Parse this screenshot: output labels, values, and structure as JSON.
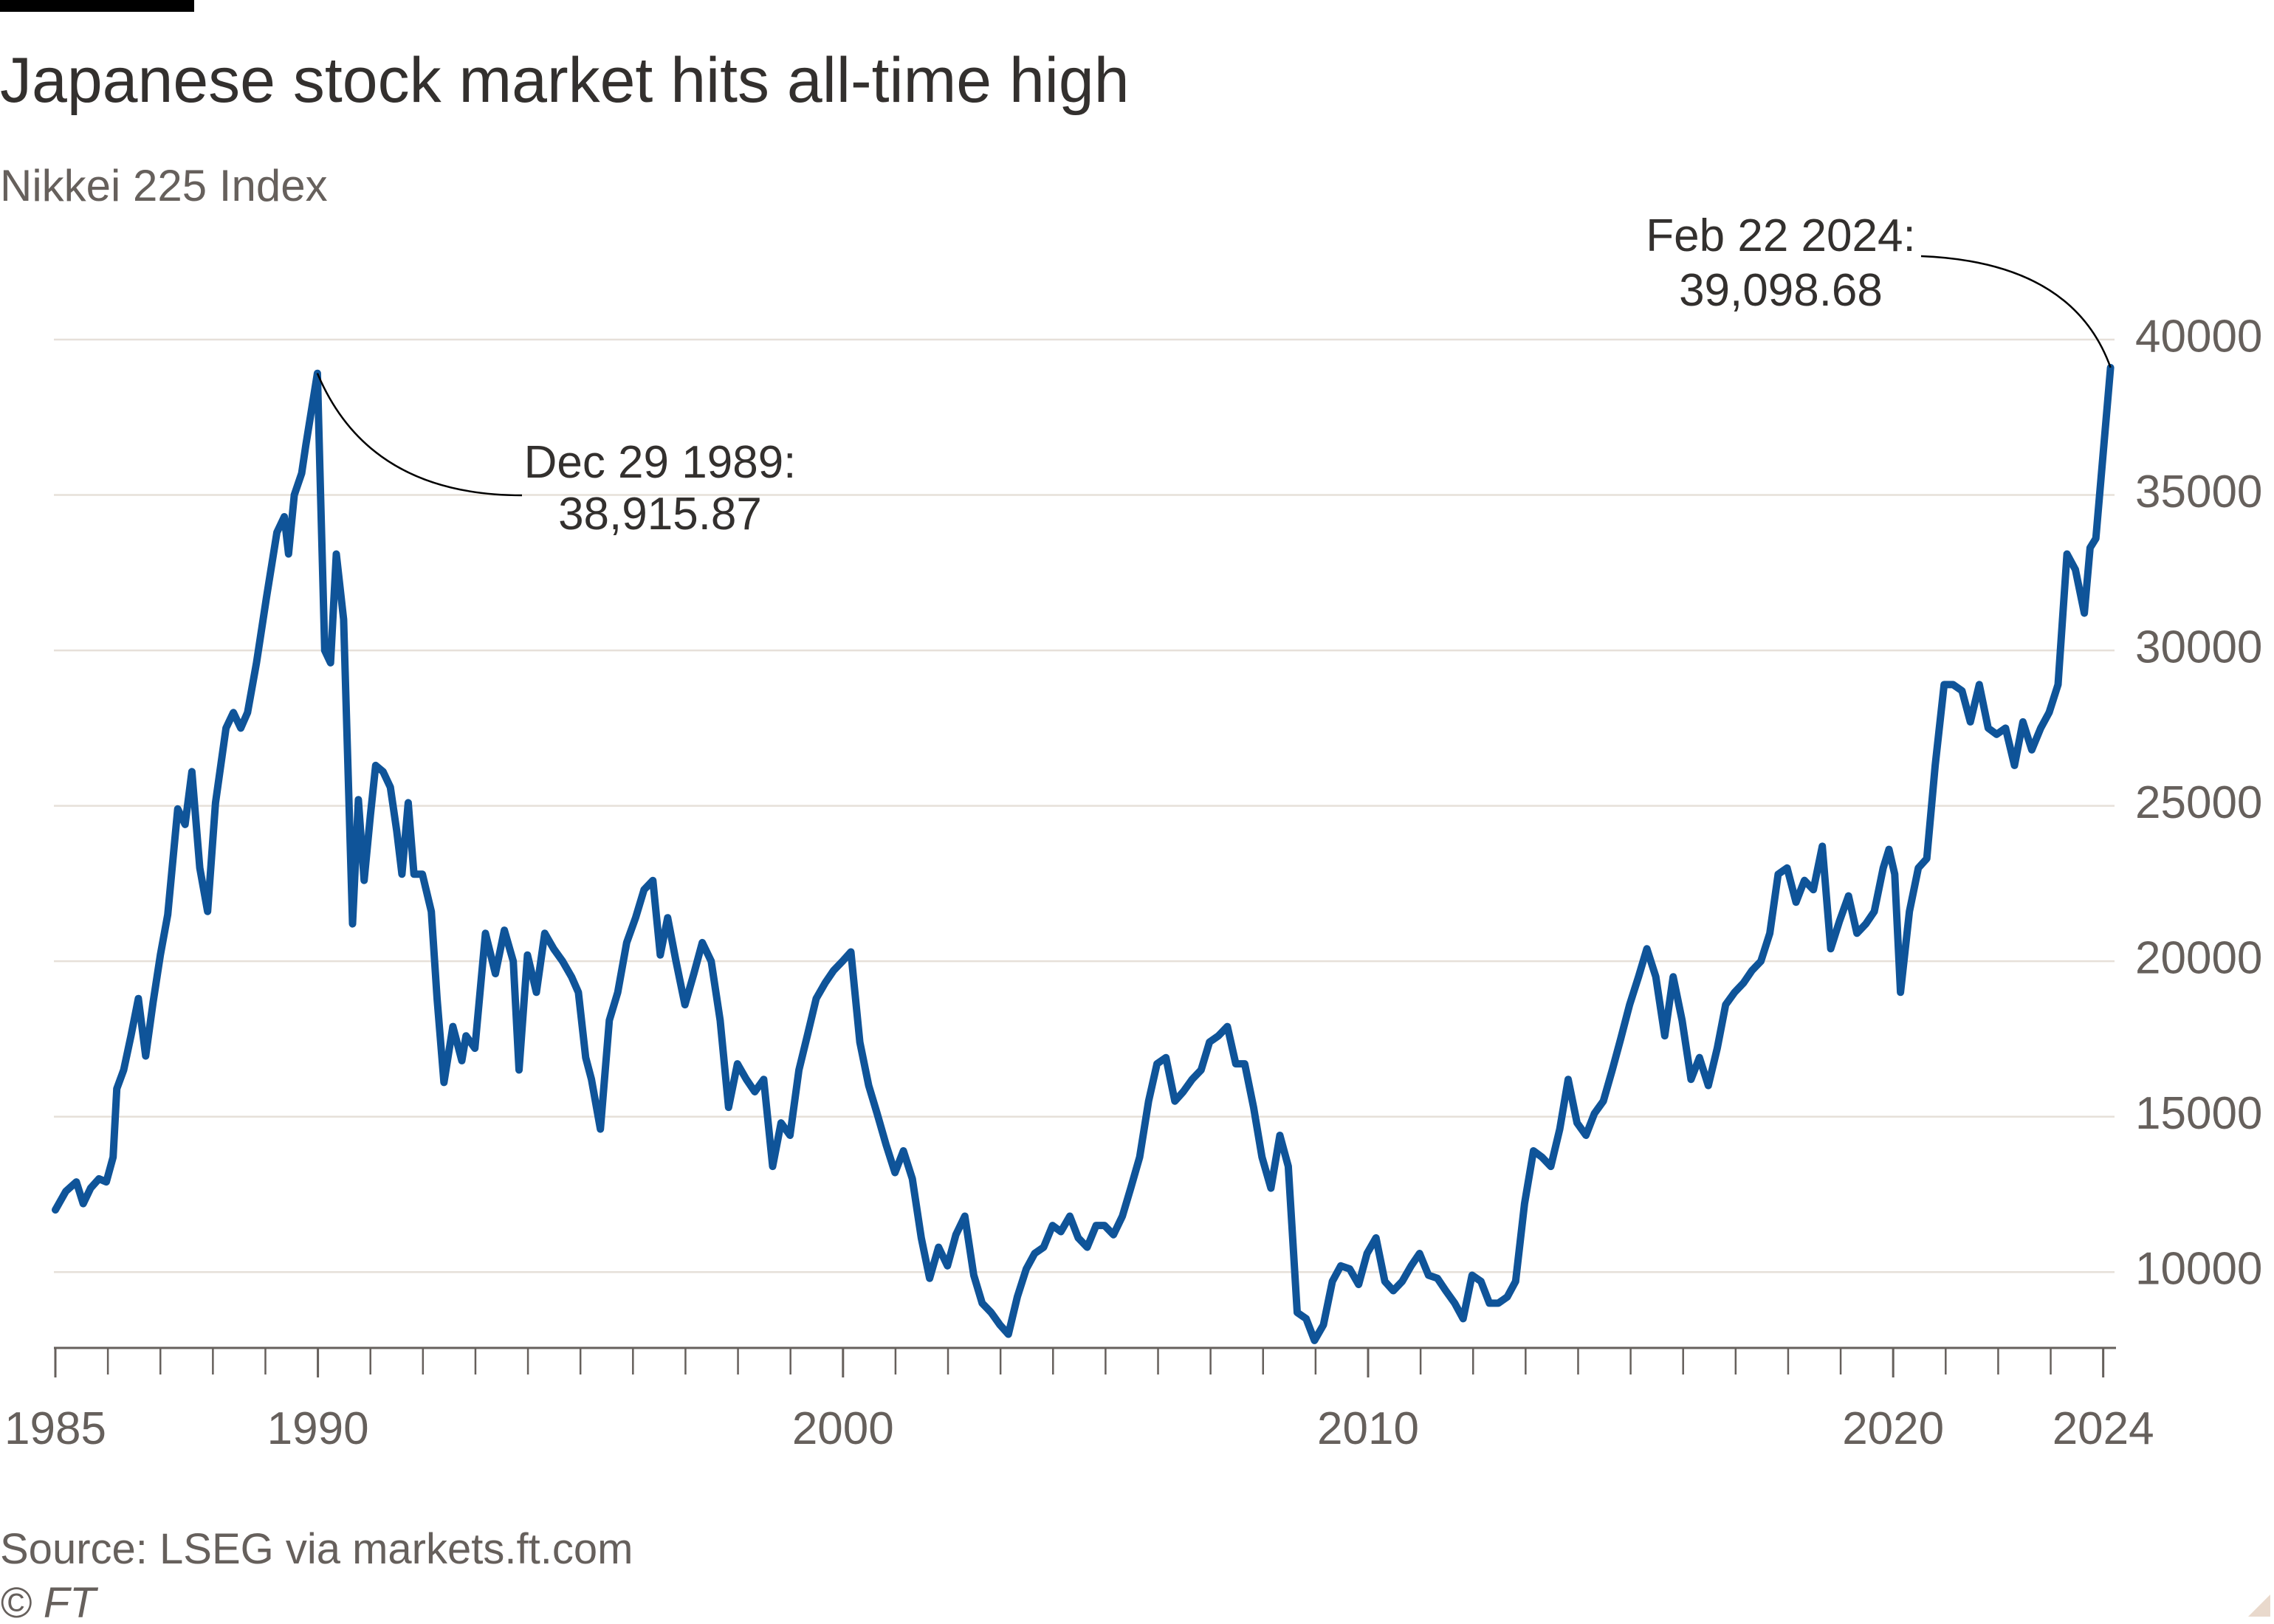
{
  "chart_data": {
    "type": "line",
    "title": "Japanese stock market hits all-time high",
    "subtitle": "Nikkei 225 Index",
    "source": "Source: LSEG via markets.ft.com",
    "credit": "© FT",
    "color": "#0f5499",
    "x": [
      1985.0,
      1985.2,
      1985.4,
      1985.53,
      1985.67,
      1985.83,
      1985.97,
      1986.1,
      1986.17,
      1986.3,
      1986.44,
      1986.58,
      1986.72,
      1986.86,
      1987.0,
      1987.14,
      1987.33,
      1987.47,
      1987.6,
      1987.75,
      1987.9,
      1988.05,
      1988.25,
      1988.39,
      1988.53,
      1988.66,
      1988.83,
      1989.02,
      1989.22,
      1989.36,
      1989.44,
      1989.55,
      1989.69,
      1989.77,
      1989.99,
      1990.05,
      1990.13,
      1990.24,
      1990.35,
      1990.49,
      1990.66,
      1990.77,
      1990.88,
      1991.0,
      1991.1,
      1991.24,
      1991.38,
      1991.5,
      1991.6,
      1991.72,
      1991.83,
      1991.99,
      1992.16,
      1992.27,
      1992.4,
      1992.57,
      1992.74,
      1992.82,
      1992.99,
      1993.19,
      1993.38,
      1993.55,
      1993.72,
      1993.83,
      1993.99,
      1994.16,
      1994.32,
      1994.49,
      1994.66,
      1994.83,
      1994.96,
      1995.1,
      1995.21,
      1995.38,
      1995.55,
      1995.71,
      1995.88,
      1996.05,
      1996.21,
      1996.38,
      1996.52,
      1996.66,
      1996.82,
      1996.99,
      1997.16,
      1997.32,
      1997.49,
      1997.66,
      1997.82,
      1997.99,
      1998.16,
      1998.32,
      1998.49,
      1998.66,
      1998.82,
      1998.99,
      1999.16,
      1999.32,
      1999.49,
      1999.66,
      1999.82,
      1999.99,
      2000.15,
      2000.32,
      2000.49,
      2000.65,
      2000.82,
      2000.99,
      2001.15,
      2001.32,
      2001.49,
      2001.65,
      2001.82,
      2001.99,
      2002.15,
      2002.32,
      2002.49,
      2002.65,
      2002.82,
      2002.99,
      2003.15,
      2003.32,
      2003.49,
      2003.65,
      2003.82,
      2003.99,
      2004.15,
      2004.32,
      2004.48,
      2004.65,
      2004.82,
      2004.98,
      2005.15,
      2005.32,
      2005.48,
      2005.65,
      2005.82,
      2005.98,
      2006.15,
      2006.32,
      2006.48,
      2006.65,
      2006.82,
      2006.98,
      2007.15,
      2007.32,
      2007.48,
      2007.65,
      2007.82,
      2007.98,
      2008.15,
      2008.32,
      2008.48,
      2008.65,
      2008.82,
      2008.98,
      2009.15,
      2009.32,
      2009.48,
      2009.65,
      2009.82,
      2009.98,
      2010.15,
      2010.32,
      2010.48,
      2010.65,
      2010.82,
      2010.98,
      2011.15,
      2011.32,
      2011.48,
      2011.65,
      2011.81,
      2011.98,
      2012.15,
      2012.31,
      2012.48,
      2012.65,
      2012.81,
      2012.98,
      2013.15,
      2013.31,
      2013.48,
      2013.65,
      2013.81,
      2013.98,
      2014.15,
      2014.31,
      2014.48,
      2014.65,
      2014.81,
      2014.98,
      2015.15,
      2015.31,
      2015.48,
      2015.65,
      2015.81,
      2015.98,
      2016.15,
      2016.31,
      2016.48,
      2016.65,
      2016.81,
      2016.98,
      2017.15,
      2017.31,
      2017.48,
      2017.65,
      2017.81,
      2017.98,
      2018.15,
      2018.31,
      2018.48,
      2018.65,
      2018.81,
      2018.98,
      2019.15,
      2019.31,
      2019.48,
      2019.64,
      2019.81,
      2019.92,
      2020.03,
      2020.14,
      2020.31,
      2020.48,
      2020.64,
      2020.8,
      2020.97,
      2021.14,
      2021.31,
      2021.47,
      2021.64,
      2021.81,
      2021.97,
      2022.14,
      2022.31,
      2022.47,
      2022.64,
      2022.81,
      2022.97,
      2023.14,
      2023.31,
      2023.47,
      2023.64,
      2023.75,
      2023.86,
      2024.14
    ],
    "values": [
      12000,
      12600,
      12900,
      12200,
      12700,
      13000,
      12900,
      13700,
      15900,
      16500,
      17600,
      18800,
      16950,
      18670,
      20200,
      21500,
      24900,
      24400,
      26100,
      23000,
      21600,
      25100,
      27500,
      28000,
      27500,
      28000,
      29600,
      31700,
      33800,
      34300,
      33100,
      35000,
      35700,
      36600,
      38915.87,
      35000,
      30000,
      29600,
      33100,
      31000,
      21200,
      25200,
      22600,
      24700,
      26300,
      26100,
      25600,
      24200,
      22800,
      25100,
      22800,
      22800,
      21600,
      18800,
      16100,
      17900,
      16800,
      17600,
      17200,
      20900,
      19600,
      21000,
      20000,
      16500,
      20200,
      19000,
      20900,
      20400,
      20000,
      19500,
      19000,
      16900,
      16200,
      14600,
      18100,
      19000,
      20600,
      21400,
      22300,
      22600,
      20200,
      21400,
      20000,
      18600,
      19600,
      20600,
      20000,
      18100,
      15300,
      16700,
      16200,
      15800,
      16200,
      13400,
      14800,
      14400,
      16500,
      17600,
      18800,
      19300,
      19700,
      20000,
      20300,
      17400,
      16000,
      15100,
      14100,
      13200,
      13900,
      13000,
      11100,
      9800,
      10800,
      10200,
      11200,
      11800,
      9900,
      9000,
      8700,
      8300,
      8000,
      9200,
      10100,
      10600,
      10800,
      11500,
      11300,
      11800,
      11100,
      10800,
      11500,
      11500,
      11200,
      11800,
      12700,
      13700,
      15500,
      16700,
      16900,
      15500,
      15800,
      16200,
      16500,
      17400,
      17600,
      17900,
      16700,
      16700,
      15300,
      13700,
      12700,
      14400,
      13400,
      8700,
      8500,
      7800,
      8300,
      9700,
      10200,
      10100,
      9600,
      10600,
      11100,
      9700,
      9400,
      9700,
      10200,
      10600,
      9900,
      9800,
      9400,
      9000,
      8500,
      9900,
      9700,
      9000,
      9000,
      9200,
      9700,
      12200,
      13900,
      13700,
      13400,
      14600,
      16200,
      14800,
      14400,
      15100,
      15500,
      16500,
      17500,
      18600,
      19500,
      20400,
      19500,
      17600,
      19500,
      18100,
      16200,
      16900,
      16000,
      17200,
      18600,
      19000,
      19300,
      19700,
      20000,
      20900,
      22800,
      23000,
      21900,
      22600,
      22300,
      23700,
      20400,
      21300,
      22100,
      20900,
      21200,
      21600,
      23000,
      23600,
      22800,
      19000,
      21600,
      23000,
      23300,
      26300,
      28900,
      28900,
      28700,
      27700,
      28900,
      27500,
      27300,
      27500,
      26300,
      27700,
      26800,
      27500,
      28000,
      28900,
      33100,
      32600,
      31200,
      33300,
      33600,
      39098.68
    ],
    "xlim": [
      1985,
      2024.3
    ],
    "xticks": [
      1985,
      1990,
      2000,
      2010,
      2020,
      2024
    ],
    "xminor_ticks": [
      1985,
      1986,
      1987,
      1988,
      1989,
      1990,
      1991,
      1992,
      1993,
      1994,
      1995,
      1996,
      1997,
      1998,
      1999,
      2000,
      2001,
      2002,
      2003,
      2004,
      2005,
      2006,
      2007,
      2008,
      2009,
      2010,
      2011,
      2012,
      2013,
      2014,
      2015,
      2016,
      2017,
      2018,
      2019,
      2020,
      2021,
      2022,
      2023,
      2024
    ],
    "ylim": [
      7560,
      40000
    ],
    "yticks": [
      10000,
      15000,
      20000,
      25000,
      30000,
      35000,
      40000
    ],
    "grid": true,
    "annotations": [
      {
        "lines": [
          "Dec 29 1989:",
          "38,915.87"
        ],
        "x": 1989.99,
        "y": 38915.87
      },
      {
        "lines": [
          "Feb 22 2024:",
          "39,098.68"
        ],
        "x": 2024.14,
        "y": 39098.68
      }
    ]
  }
}
